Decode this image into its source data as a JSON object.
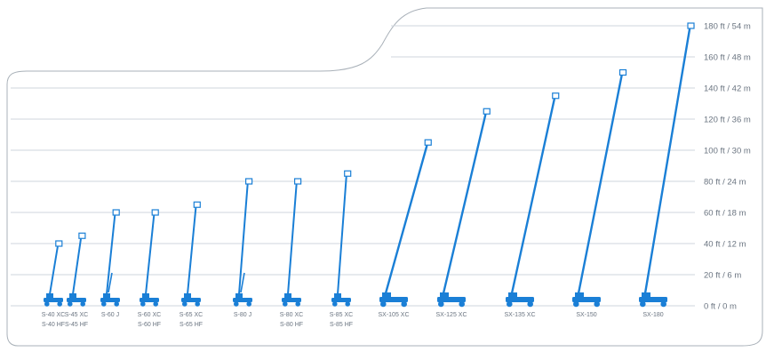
{
  "chart_data": {
    "type": "bar",
    "y_tick_labels": [
      "180 ft / 54 m",
      "160 ft / 48 m",
      "140 ft / 42 m",
      "120 ft / 36 m",
      "100 ft / 30 m",
      "80 ft / 24 m",
      "60 ft / 18 m",
      "40 ft / 12 m",
      "20 ft / 6 m",
      "0 ft / 0 m"
    ],
    "ylim_ft": [
      0,
      180
    ],
    "grid": true,
    "colors": {
      "boom": "#1a7fd6",
      "grid": "#cfd6dc",
      "text": "#6a7480",
      "outline": "#a0a8b0"
    },
    "models": [
      {
        "labels": [
          "S-40 XC",
          "S-40 HF"
        ],
        "height_ft": 40
      },
      {
        "labels": [
          "S-45 XC",
          "S-45 HF"
        ],
        "height_ft": 45
      },
      {
        "labels": [
          "S-60 J"
        ],
        "height_ft": 60
      },
      {
        "labels": [
          "S-60 XC",
          "S-60 HF"
        ],
        "height_ft": 60
      },
      {
        "labels": [
          "S-65 XC",
          "S-65 HF"
        ],
        "height_ft": 65
      },
      {
        "labels": [
          "S-80 J"
        ],
        "height_ft": 80
      },
      {
        "labels": [
          "S-80 XC",
          "S-80 HF"
        ],
        "height_ft": 80
      },
      {
        "labels": [
          "S-85 XC",
          "S-85 HF"
        ],
        "height_ft": 85
      },
      {
        "labels": [
          "SX-105 XC"
        ],
        "height_ft": 105
      },
      {
        "labels": [
          "SX-125 XC"
        ],
        "height_ft": 125
      },
      {
        "labels": [
          "SX-135 XC"
        ],
        "height_ft": 135
      },
      {
        "labels": [
          "SX-150"
        ],
        "height_ft": 150
      },
      {
        "labels": [
          "SX-180"
        ],
        "height_ft": 180
      }
    ]
  }
}
